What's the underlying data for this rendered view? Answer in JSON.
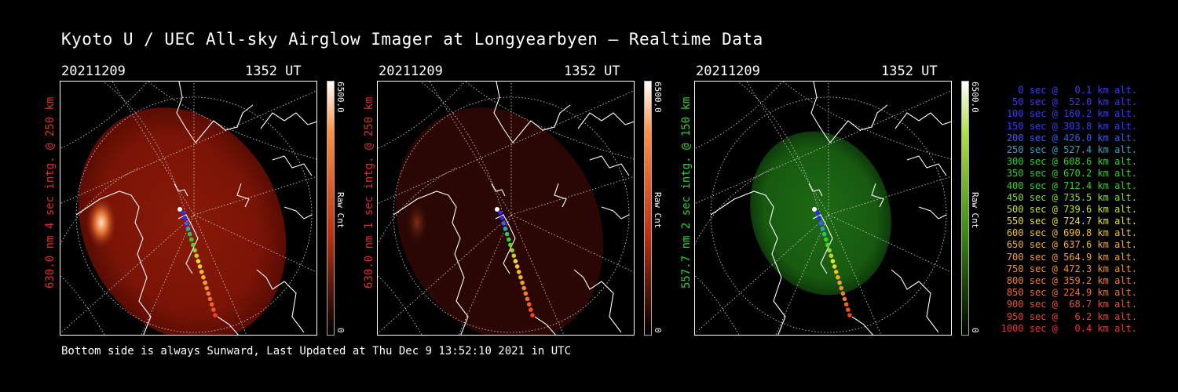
{
  "title": "Kyoto U / UEC All-sky Airglow Imager at Longyearbyen — Realtime Data",
  "footer": "Bottom side is always Sunward, Last Updated at Thu Dec  9 13:52:10 2021 in UTC",
  "panels": [
    {
      "date": "20211209",
      "time": "1352 UT",
      "side_label": "630.0 nm 4 sec intg. @ 250 km",
      "colorbar_max": "6500.0",
      "colorbar_min": "0",
      "colorbar_unit": "Raw Cnt",
      "label_color": "#e03020",
      "image": "red-airglow-bright"
    },
    {
      "date": "20211209",
      "time": "1352 UT",
      "side_label": "630.0 nm 1 sec intg. @ 250 km",
      "colorbar_max": "6500.0",
      "colorbar_min": "0",
      "colorbar_unit": "Raw Cnt",
      "label_color": "#e03020",
      "image": "red-airglow-dim"
    },
    {
      "date": "20211209",
      "time": "1352 UT",
      "side_label": "557.7 nm 2 sec intg. @ 150 km",
      "colorbar_max": "6500.0",
      "colorbar_min": "0",
      "colorbar_unit": "Raw Cnt",
      "label_color": "#30d030",
      "image": "green-airglow"
    }
  ],
  "legend": [
    {
      "text": "0 sec @   0.1 km alt.",
      "color": "#3a3aff"
    },
    {
      "text": "50 sec @  52.0 km alt.",
      "color": "#3a3aff"
    },
    {
      "text": "100 sec @ 160.2 km alt.",
      "color": "#3a3aff"
    },
    {
      "text": "150 sec @ 303.8 km alt.",
      "color": "#3a3aff"
    },
    {
      "text": "200 sec @ 426.0 km alt.",
      "color": "#3a5aff"
    },
    {
      "text": "250 sec @ 527.4 km alt.",
      "color": "#3aa0c0"
    },
    {
      "text": "300 sec @ 608.6 km alt.",
      "color": "#2ed02e"
    },
    {
      "text": "350 sec @ 670.2 km alt.",
      "color": "#2ed02e"
    },
    {
      "text": "400 sec @ 712.4 km alt.",
      "color": "#2ed02e"
    },
    {
      "text": "450 sec @ 735.5 km alt.",
      "color": "#80e02e"
    },
    {
      "text": "500 sec @ 739.6 km alt.",
      "color": "#c0e02e"
    },
    {
      "text": "550 sec @ 724.7 km alt.",
      "color": "#e8e030"
    },
    {
      "text": "600 sec @ 690.8 km alt.",
      "color": "#f0c030"
    },
    {
      "text": "650 sec @ 637.6 km alt.",
      "color": "#f0b030"
    },
    {
      "text": "700 sec @ 564.9 km alt.",
      "color": "#f0a030"
    },
    {
      "text": "750 sec @ 472.3 km alt.",
      "color": "#f09030"
    },
    {
      "text": "800 sec @ 359.2 km alt.",
      "color": "#f08030"
    },
    {
      "text": "850 sec @ 224.9 km alt.",
      "color": "#f07030"
    },
    {
      "text": "900 sec @  68.7 km alt.",
      "color": "#f05030"
    },
    {
      "text": "950 sec @   6.2 km alt.",
      "color": "#f04030"
    },
    {
      "text": "1000 sec @   0.4 km alt.",
      "color": "#f03030"
    }
  ]
}
